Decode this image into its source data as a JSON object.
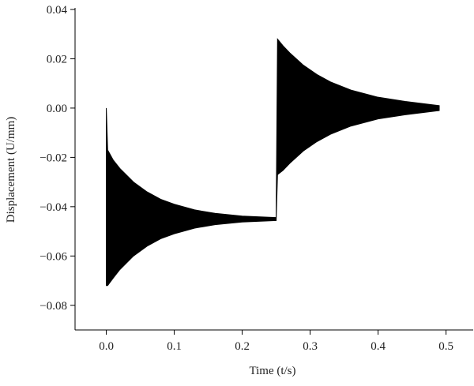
{
  "chart_data": {
    "type": "area",
    "xlabel": "Time (t/s)",
    "ylabel": "Displacement (U/mm)",
    "color": "#000000",
    "x": [
      0,
      0.002,
      0.01,
      0.02,
      0.04,
      0.06,
      0.08,
      0.1,
      0.13,
      0.16,
      0.2,
      0.25,
      0.252,
      0.26,
      0.27,
      0.29,
      0.31,
      0.33,
      0.36,
      0.4,
      0.44,
      0.49
    ],
    "upper": [
      0.0,
      -0.017,
      -0.021,
      -0.0245,
      -0.03,
      -0.034,
      -0.037,
      -0.039,
      -0.0413,
      -0.0427,
      -0.0438,
      -0.0444,
      0.028,
      0.0253,
      0.0224,
      0.0174,
      0.0136,
      0.0106,
      0.0073,
      0.0044,
      0.0027,
      0.001
    ],
    "lower": [
      -0.072,
      -0.072,
      -0.069,
      -0.0655,
      -0.06,
      -0.056,
      -0.053,
      -0.051,
      -0.0487,
      -0.0473,
      -0.0462,
      -0.0456,
      -0.027,
      -0.0253,
      -0.0224,
      -0.0174,
      -0.0136,
      -0.0106,
      -0.0073,
      -0.0044,
      -0.0027,
      -0.001
    ],
    "xlim": [
      -0.046,
      0.54
    ],
    "ylim": [
      -0.09,
      0.04
    ],
    "xticks": [
      {
        "value": 0,
        "label": "0.0"
      },
      0.1,
      0.2,
      0.3,
      0.4,
      0.5
    ],
    "yticks": [
      0.04,
      0.02,
      {
        "value": 0,
        "label": "0.00"
      },
      {
        "value": -0.02,
        "label": "−0.02"
      },
      {
        "value": -0.04,
        "label": "−0.04"
      },
      {
        "value": -0.06,
        "label": "−0.06"
      },
      {
        "value": -0.08,
        "label": "−0.08"
      }
    ]
  }
}
